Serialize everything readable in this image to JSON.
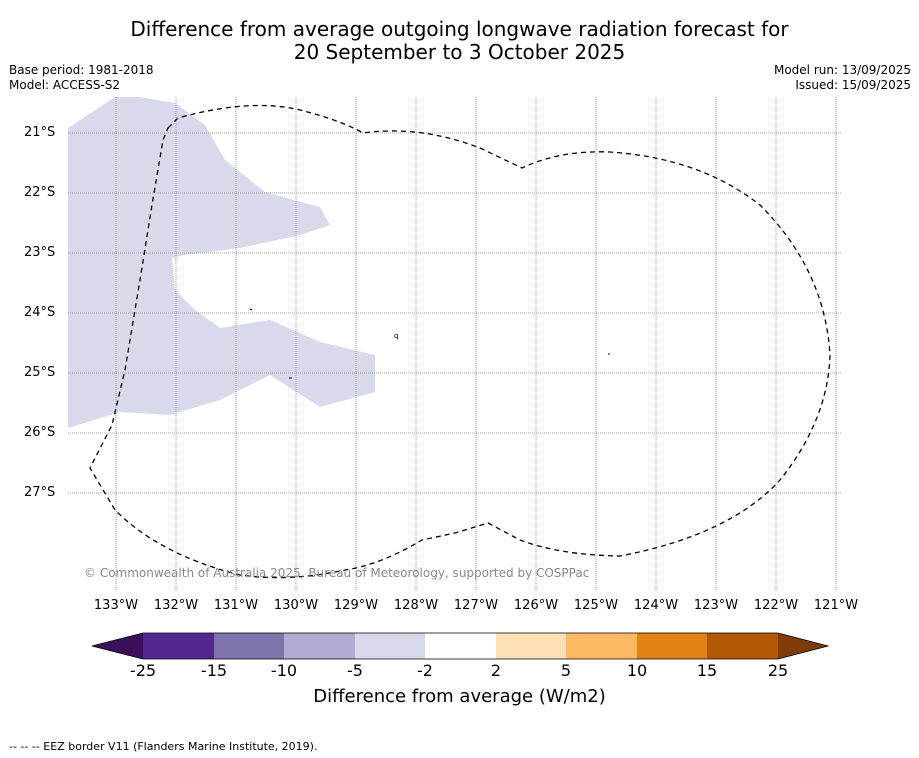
{
  "title_line1": "Difference from average outgoing longwave radiation forecast for",
  "title_line2": "20 September to 3 October 2025",
  "base_period": "Base period: 1981-2018",
  "model": "Model: ACCESS-S2",
  "model_run": "Model run: 13/09/2025",
  "issued": "Issued: 15/09/2025",
  "copyright": "© Commonwealth of Australia 2025, Bureau of Meteorology, supported by COSPPac",
  "latitudes": [
    "21°S",
    "22°S",
    "23°S",
    "24°S",
    "25°S",
    "26°S",
    "27°S"
  ],
  "longitudes": [
    "133°W",
    "132°W",
    "131°W",
    "130°W",
    "129°W",
    "128°W",
    "127°W",
    "126°W",
    "125°W",
    "124°W",
    "123°W",
    "122°W",
    "121°W"
  ],
  "colorbar": {
    "ticks": [
      "-25",
      "-15",
      "-10",
      "-5",
      "-2",
      "2",
      "5",
      "10",
      "15",
      "25"
    ],
    "colors": [
      "#3b0f5a",
      "#54278f",
      "#8073ac",
      "#b2abd2",
      "#d8daeb",
      "#ffffff",
      "#fee0b6",
      "#fdb863",
      "#e08214",
      "#b35806",
      "#7f3b08"
    ],
    "label": "Difference from average (W/m2)"
  },
  "footnote": "-- -- -- EEZ border V11 (Flanders Marine Institute, 2019).",
  "colors": {
    "anomaly_fill": "#d8daeb",
    "grid": "#888888",
    "eez_line": "#000000"
  }
}
